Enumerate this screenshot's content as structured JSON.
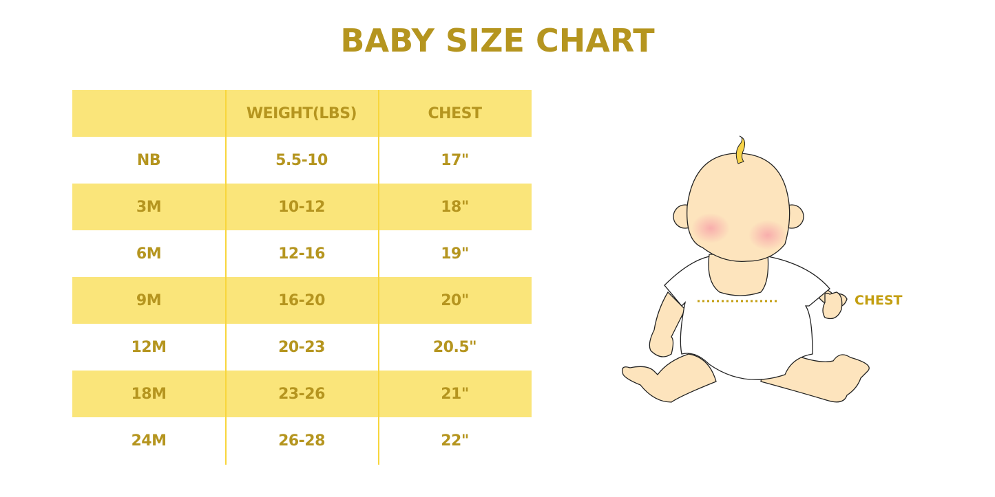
{
  "title": "BABY SIZE CHART",
  "table": {
    "headers": [
      "",
      "WEIGHT(LBS)",
      "CHEST"
    ],
    "rows": [
      [
        "NB",
        "5.5-10",
        "17\""
      ],
      [
        "3M",
        "10-12",
        "18\""
      ],
      [
        "6M",
        "12-16",
        "19\""
      ],
      [
        "9M",
        "16-20",
        "20\""
      ],
      [
        "12M",
        "20-23",
        "20.5\""
      ],
      [
        "18M",
        "23-26",
        "21\""
      ],
      [
        "24M",
        "26-28",
        "22\""
      ]
    ]
  },
  "illustration": {
    "chest_label": "CHEST"
  },
  "colors": {
    "text": "#b5951f",
    "band": "#fae57a",
    "divider": "#f8d63c"
  }
}
